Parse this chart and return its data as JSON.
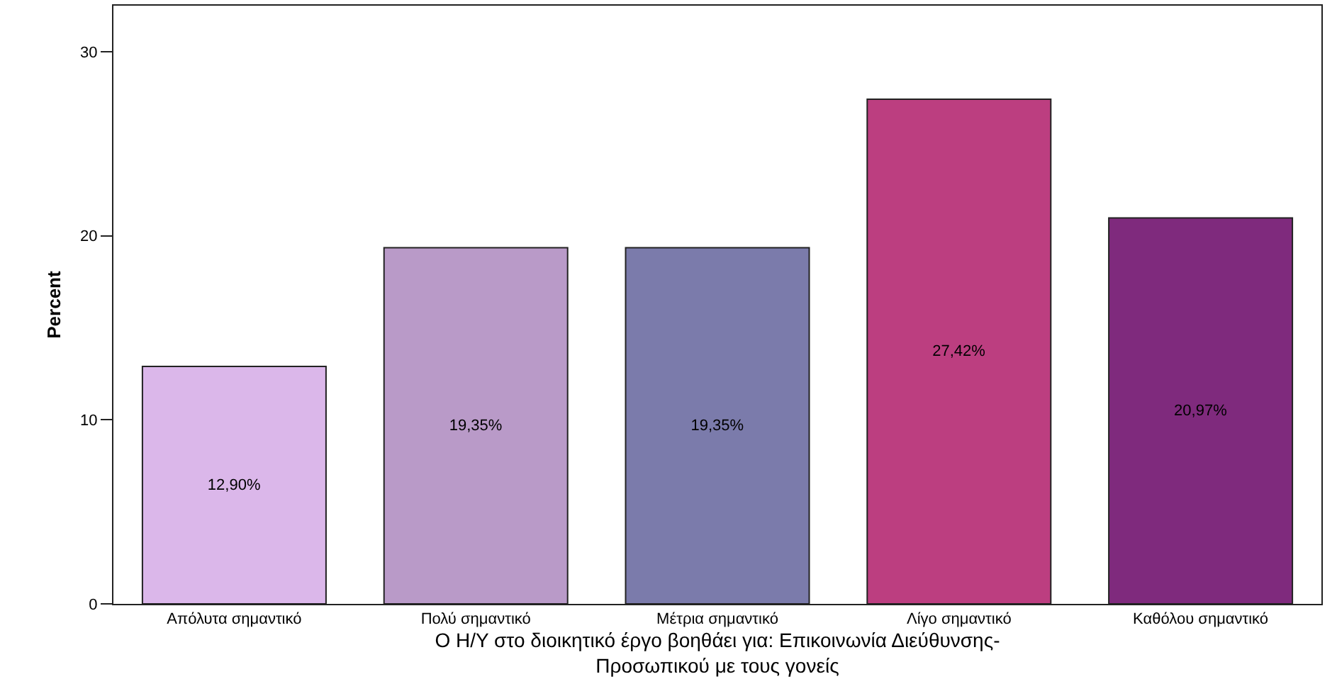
{
  "chart_data": {
    "type": "bar",
    "xlabel": "Ο Η/Υ στο διοικητικό έργο βοηθάει για: Επικοινωνία Διεύθυνσης-\nΠροσωπικού με τους γονείς",
    "ylabel": "Percent",
    "categories": [
      "Απόλυτα σημαντικό",
      "Πολύ σημαντικό",
      "Μέτρια σημαντικό",
      "Λίγο σημαντικό",
      "Καθόλου σημαντικό"
    ],
    "values": [
      12.9,
      19.35,
      19.35,
      27.42,
      20.97
    ],
    "value_labels": [
      "12,90%",
      "19,35%",
      "19,35%",
      "27,42%",
      "20,97%"
    ],
    "colors": [
      "#dbb7ea",
      "#b99ac8",
      "#7b7bab",
      "#bc3e80",
      "#7f2a7d"
    ],
    "ylim": [
      0,
      32.5
    ],
    "yticks": [
      0,
      10,
      20,
      30
    ],
    "grid": false
  }
}
